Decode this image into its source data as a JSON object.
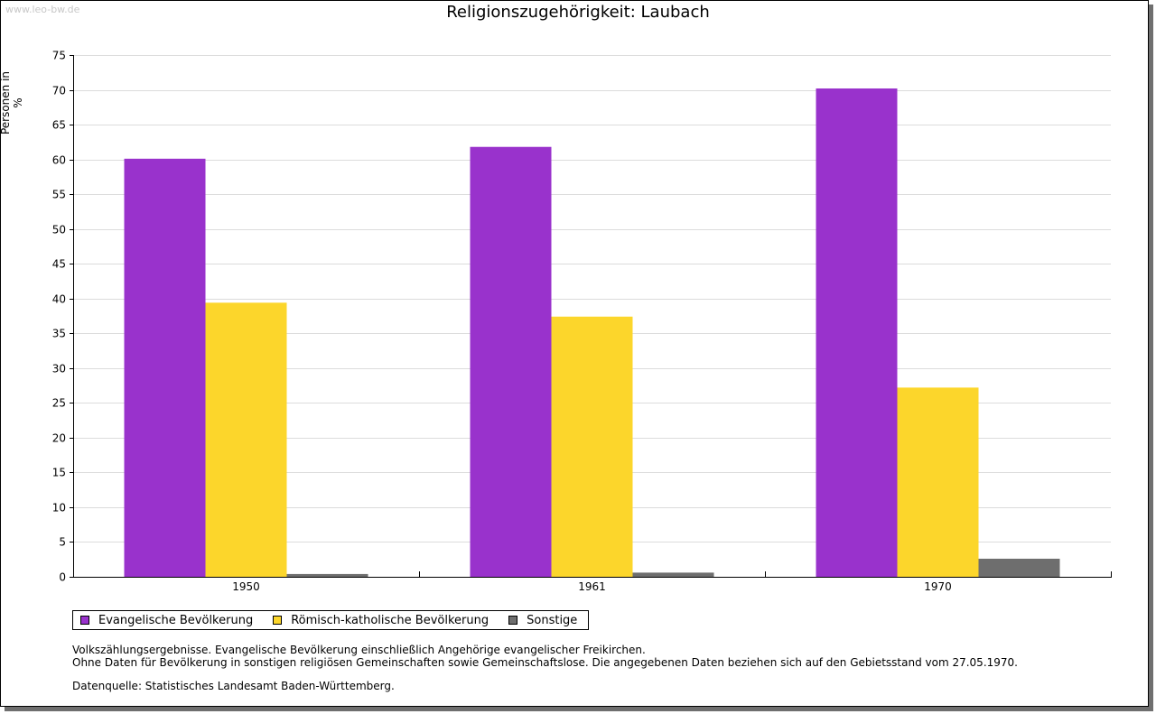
{
  "watermark": "www.leo-bw.de",
  "chart_data": {
    "type": "bar",
    "title": "Religionszugehörigkeit: Laubach",
    "xlabel": "",
    "ylabel": "Personen in %",
    "ylim": [
      0,
      75
    ],
    "yticks": [
      0,
      5,
      10,
      15,
      20,
      25,
      30,
      35,
      40,
      45,
      50,
      55,
      60,
      65,
      70,
      75
    ],
    "grid": true,
    "legend_position": "bottom-left",
    "categories": [
      "1950",
      "1961",
      "1970"
    ],
    "series": [
      {
        "name": "Evangelische Bevölkerung",
        "color": "#9932cc",
        "values": [
          60.1,
          61.8,
          70.2
        ]
      },
      {
        "name": "Römisch-katholische Bevölkerung",
        "color": "#fcd62b",
        "values": [
          39.4,
          37.4,
          27.2
        ]
      },
      {
        "name": "Sonstige",
        "color": "#6e6e6e",
        "values": [
          0.4,
          0.6,
          2.6
        ]
      }
    ]
  },
  "notes": {
    "line1": "Volkszählungsergebnisse. Evangelische Bevölkerung einschließlich Angehörige evangelischer Freikirchen.",
    "line2": "Ohne Daten für Bevölkerung in sonstigen religiösen Gemeinschaften sowie Gemeinschaftslose. Die angegebenen Daten beziehen sich auf den Gebietsstand vom 27.05.1970.",
    "source": "Datenquelle: Statistisches Landesamt Baden-Württemberg."
  }
}
